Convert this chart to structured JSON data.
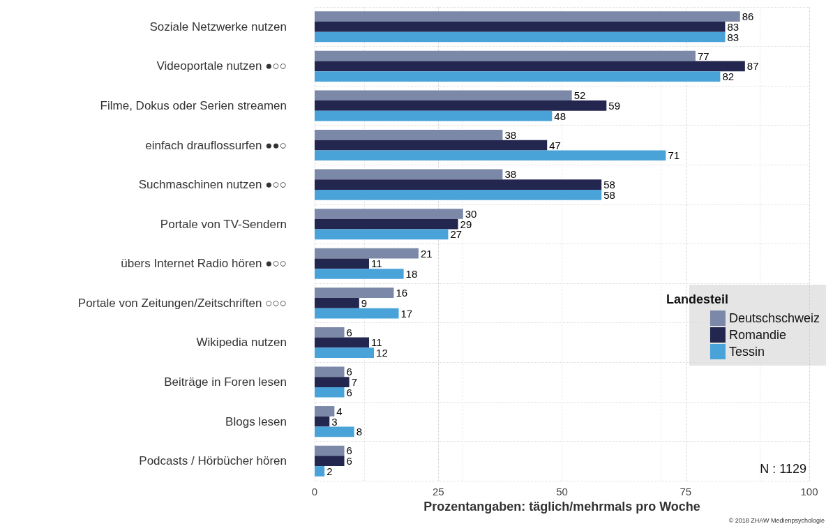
{
  "chart_data": {
    "type": "bar",
    "orientation": "horizontal",
    "xlabel": "Prozentangaben: täglich/mehrmals pro Woche",
    "legend_title": "Landesteil",
    "categories": [
      "Soziale Netzwerke nutzen",
      "Videoportale nutzen ●○○",
      "Filme, Dokus oder Serien streamen",
      "einfach drauflossurfen ●●○",
      "Suchmaschinen nutzen ●○○",
      "Portale von TV-Sendern",
      "übers Internet Radio hören ●○○",
      "Portale von Zeitungen/Zeitschriften ○○○",
      "Wikipedia nutzen",
      "Beiträge in Foren lesen",
      "Blogs lesen",
      "Podcasts / Hörbücher hören"
    ],
    "series": [
      {
        "name": "Deutschschweiz",
        "color": "#7b88a8",
        "values": [
          86,
          77,
          52,
          38,
          38,
          30,
          21,
          16,
          6,
          6,
          4,
          6
        ]
      },
      {
        "name": "Romandie",
        "color": "#23264f",
        "values": [
          83,
          87,
          59,
          47,
          58,
          29,
          11,
          9,
          11,
          7,
          3,
          6
        ]
      },
      {
        "name": "Tessin",
        "color": "#4aa3d8",
        "values": [
          83,
          82,
          48,
          71,
          58,
          27,
          18,
          17,
          12,
          6,
          8,
          2
        ]
      }
    ],
    "xlim": [
      0,
      100
    ],
    "xticks": [
      0,
      25,
      50,
      75,
      100
    ],
    "grid": true,
    "legend": "right",
    "data_labels": true,
    "annotations": [
      "N : 1129",
      "© 2018 ZHAW Medienpsychologie"
    ]
  }
}
